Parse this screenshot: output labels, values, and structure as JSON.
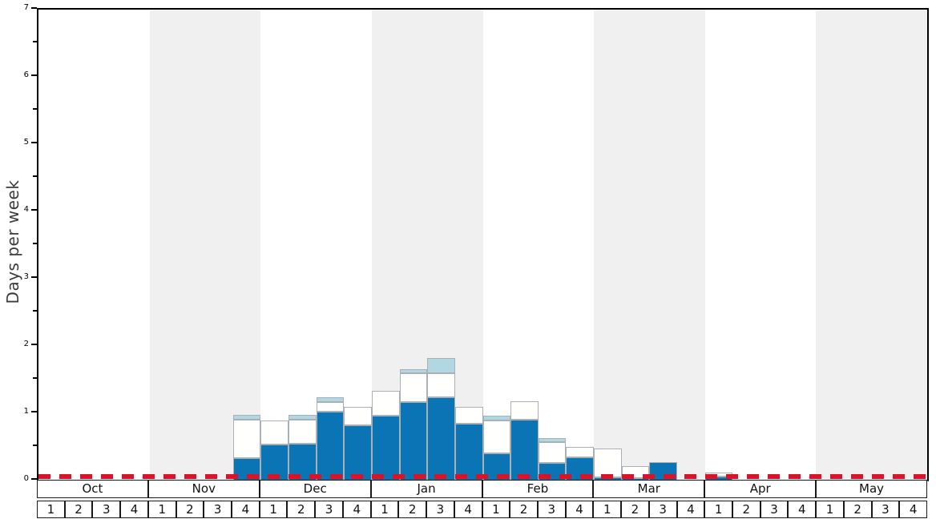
{
  "chart_data": {
    "type": "bar",
    "stacked": true,
    "title": "",
    "xlabel": "",
    "ylabel": "Days per week",
    "ylim": [
      0,
      7
    ],
    "yticks": [
      0,
      1,
      2,
      3,
      4,
      5,
      6,
      7
    ],
    "minor_ytick_step": 0.5,
    "grid": false,
    "legend": "none",
    "months": [
      "Oct",
      "Nov",
      "Dec",
      "Jan",
      "Feb",
      "Mar",
      "Apr",
      "May"
    ],
    "week_labels": [
      "1",
      "2",
      "3",
      "4"
    ],
    "weeks_per_month": 4,
    "shaded_months": [
      "Nov",
      "Jan",
      "Mar",
      "May"
    ],
    "categories": [
      "Oct-1",
      "Oct-2",
      "Oct-3",
      "Oct-4",
      "Nov-1",
      "Nov-2",
      "Nov-3",
      "Nov-4",
      "Dec-1",
      "Dec-2",
      "Dec-3",
      "Dec-4",
      "Jan-1",
      "Jan-2",
      "Jan-3",
      "Jan-4",
      "Feb-1",
      "Feb-2",
      "Feb-3",
      "Feb-4",
      "Mar-1",
      "Mar-2",
      "Mar-3",
      "Mar-4",
      "Apr-1",
      "Apr-2",
      "Apr-3",
      "Apr-4",
      "May-1",
      "May-2",
      "May-3",
      "May-4"
    ],
    "series": [
      {
        "name": "solid-blue-segment",
        "color": "#0a74b4",
        "values": [
          0,
          0,
          0,
          0,
          0,
          0,
          0,
          0.33,
          0.54,
          0.55,
          1.02,
          0.82,
          0.96,
          1.17,
          1.24,
          0.84,
          0.4,
          0.9,
          0.26,
          0.34,
          0.05,
          0.04,
          0.27,
          0,
          0.06,
          0,
          0,
          0,
          0,
          0,
          0,
          0
        ]
      },
      {
        "name": "white-segment",
        "color": "#fffffe",
        "values": [
          0,
          0,
          0,
          0,
          0,
          0,
          0,
          0.58,
          0.35,
          0.36,
          0.15,
          0.28,
          0.37,
          0.42,
          0.36,
          0.26,
          0.49,
          0.28,
          0.31,
          0.16,
          0.43,
          0.17,
          0,
          0,
          0.06,
          0,
          0,
          0,
          0,
          0,
          0,
          0
        ]
      },
      {
        "name": "light-blue-segment",
        "color": "#b1d7e3",
        "values": [
          0,
          0,
          0,
          0,
          0,
          0,
          0,
          0.07,
          0,
          0.07,
          0.07,
          0,
          0,
          0.07,
          0.22,
          0,
          0.07,
          0,
          0.06,
          0,
          0,
          0,
          0,
          0,
          0,
          0,
          0,
          0,
          0,
          0,
          0,
          0
        ]
      }
    ],
    "reference_line": {
      "value": 0.06,
      "color": "#d6152c",
      "style": "dashed"
    },
    "colors": {
      "band_shaded": "#f0f0f0",
      "band_plain": "#ffffff",
      "bar_border": "#a9b0b6",
      "spine": "#000000",
      "baseline": "#999999",
      "axis_table_border": "#1a1a1a"
    }
  }
}
